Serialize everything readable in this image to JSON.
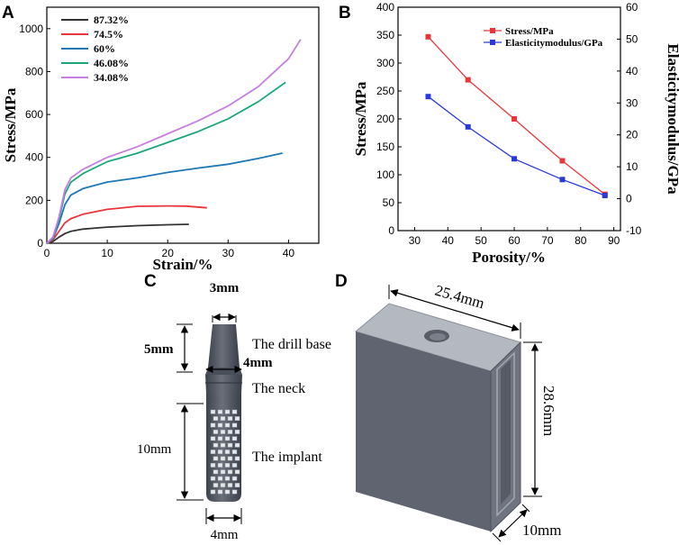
{
  "panels": {
    "a": {
      "letter": "A"
    },
    "b": {
      "letter": "B"
    },
    "c": {
      "letter": "C"
    },
    "d": {
      "letter": "D"
    }
  },
  "chart_data": [
    {
      "type": "line",
      "panel": "A",
      "title": "",
      "xlabel": "Strain/%",
      "ylabel": "Stress/MPa",
      "xlim": [
        0,
        45
      ],
      "ylim": [
        0,
        1100
      ],
      "xticks": [
        "0",
        "10",
        "20",
        "30",
        "40"
      ],
      "yticks": [
        "0",
        "200",
        "400",
        "600",
        "800",
        "1000"
      ],
      "legend_position": "top-left",
      "series": [
        {
          "name": "87.32%",
          "color": "#333333",
          "points": [
            [
              0,
              0
            ],
            [
              1,
              8
            ],
            [
              2,
              28
            ],
            [
              3,
              45
            ],
            [
              4,
              56
            ],
            [
              6,
              66
            ],
            [
              10,
              75
            ],
            [
              15,
              82
            ],
            [
              20,
              86
            ],
            [
              23.5,
              88
            ]
          ]
        },
        {
          "name": "74.5%",
          "color": "#e8363b",
          "points": [
            [
              0,
              0
            ],
            [
              1,
              15
            ],
            [
              2,
              55
            ],
            [
              3,
              95
            ],
            [
              4,
              115
            ],
            [
              6,
              135
            ],
            [
              10,
              158
            ],
            [
              15,
              172
            ],
            [
              20,
              174
            ],
            [
              23,
              173
            ],
            [
              26.5,
              165
            ]
          ]
        },
        {
          "name": "60%",
          "color": "#1f77b4",
          "points": [
            [
              0,
              0
            ],
            [
              1,
              20
            ],
            [
              2,
              90
            ],
            [
              3,
              180
            ],
            [
              4,
              225
            ],
            [
              6,
              255
            ],
            [
              10,
              285
            ],
            [
              15,
              305
            ],
            [
              20,
              330
            ],
            [
              25,
              350
            ],
            [
              30,
              368
            ],
            [
              35,
              395
            ],
            [
              39,
              420
            ]
          ]
        },
        {
          "name": "46.08%",
          "color": "#1aa87a",
          "points": [
            [
              0,
              0
            ],
            [
              1,
              25
            ],
            [
              2,
              110
            ],
            [
              3,
              230
            ],
            [
              4,
              285
            ],
            [
              6,
              325
            ],
            [
              10,
              380
            ],
            [
              15,
              420
            ],
            [
              20,
              470
            ],
            [
              25,
              520
            ],
            [
              30,
              580
            ],
            [
              35,
              660
            ],
            [
              39.5,
              750
            ]
          ]
        },
        {
          "name": "34.08%",
          "color": "#c77ee0",
          "points": [
            [
              0,
              0
            ],
            [
              1,
              28
            ],
            [
              2,
              120
            ],
            [
              3,
              250
            ],
            [
              4,
              305
            ],
            [
              6,
              345
            ],
            [
              10,
              400
            ],
            [
              15,
              450
            ],
            [
              20,
              510
            ],
            [
              25,
              570
            ],
            [
              30,
              640
            ],
            [
              35,
              730
            ],
            [
              40,
              860
            ],
            [
              42,
              950
            ]
          ]
        }
      ]
    },
    {
      "type": "line",
      "panel": "B",
      "title": "",
      "xlabel": "Porosity/%",
      "ylabel": "Stress/MPa",
      "y2label": "Elasticitymodulus/GPa",
      "xlim": [
        25,
        92
      ],
      "ylim": [
        0,
        400
      ],
      "y2lim": [
        -10,
        60
      ],
      "xticks": [
        "30",
        "40",
        "50",
        "60",
        "70",
        "80",
        "90"
      ],
      "yticks": [
        "0",
        "50",
        "100",
        "150",
        "200",
        "250",
        "300",
        "350",
        "400"
      ],
      "y2ticks": [
        "-10",
        "0",
        "10",
        "20",
        "30",
        "40",
        "50",
        "60"
      ],
      "legend_position": "top-right",
      "series": [
        {
          "name": "Stress/MPa",
          "axis": "left",
          "color": "#e8363b",
          "x": [
            34.08,
            46.08,
            60,
            74.5,
            87.32
          ],
          "values": [
            347,
            270,
            200,
            125,
            65
          ]
        },
        {
          "name": "Elasticitymodulus/GPa",
          "axis": "right",
          "color": "#2a3ad6",
          "x": [
            34.08,
            46.08,
            60,
            74.5,
            87.32
          ],
          "values": [
            32,
            22.5,
            12.5,
            6,
            1
          ]
        }
      ]
    }
  ],
  "implant": {
    "dim_top": "3mm",
    "dim_base": "5mm",
    "dim_neck_width": "4mm",
    "dim_implant": "10mm",
    "dim_bottom": "4mm",
    "label_base": "The drill base",
    "label_neck": "The neck",
    "label_implant": "The implant"
  },
  "block": {
    "dim_width": "25.4mm",
    "dim_height": "28.6mm",
    "dim_depth": "10mm"
  },
  "colors": {
    "part_dark": "#565b67",
    "part_mid": "#6c717d",
    "part_light": "#b4b8c0",
    "plot_frame": "#000000"
  }
}
